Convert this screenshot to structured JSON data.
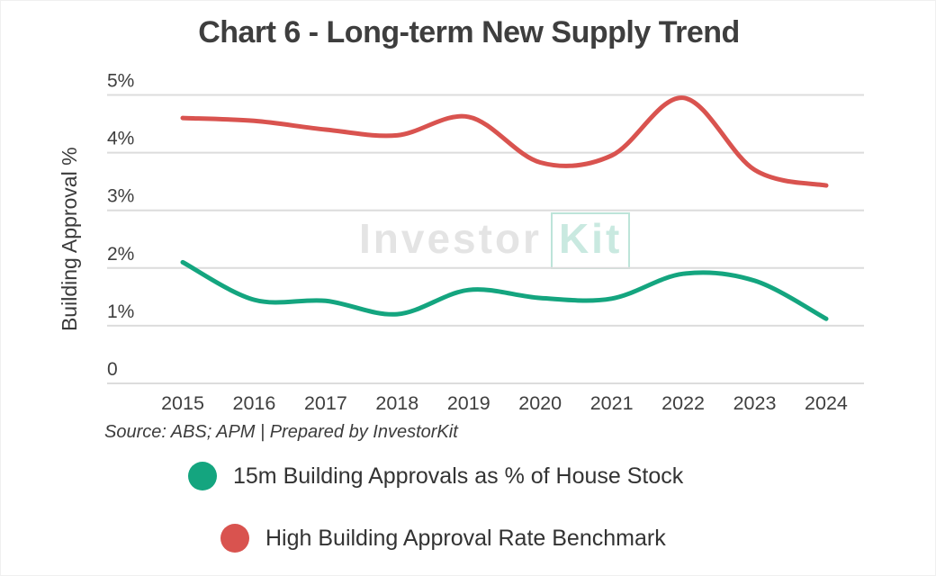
{
  "title": "Chart 6 - Long-term New Supply Trend",
  "source_note": "Source: ABS; APM | Prepared by InvestorKit",
  "watermark": {
    "part1": "Investor",
    "part2": "Kit"
  },
  "colors": {
    "green": "#14a57f",
    "red": "#d9534f",
    "grid": "#dcdcdc",
    "axis_text": "#3f3f3f",
    "legend_text": "#333333"
  },
  "chart_data": {
    "type": "line",
    "title": "Chart 6 - Long-term New Supply Trend",
    "x": [
      2015,
      2016,
      2017,
      2018,
      2019,
      2020,
      2021,
      2022,
      2023,
      2024
    ],
    "series": [
      {
        "name": "15m Building Approvals as % of House Stock",
        "color_key": "green",
        "values": [
          2.1,
          1.45,
          1.43,
          1.2,
          1.62,
          1.48,
          1.47,
          1.9,
          1.78,
          1.12
        ]
      },
      {
        "name": "High Building Approval Rate Benchmark",
        "color_key": "red",
        "values": [
          4.6,
          4.55,
          4.4,
          4.3,
          4.62,
          3.83,
          3.95,
          4.95,
          3.7,
          3.43
        ]
      }
    ],
    "xlabel": "",
    "ylabel": "Building Approval %",
    "ylim": [
      0,
      5
    ],
    "ytick_labels": [
      "0",
      "1%",
      "2%",
      "3%",
      "4%",
      "5%"
    ],
    "grid": "horizontal",
    "legend_position": "bottom"
  }
}
